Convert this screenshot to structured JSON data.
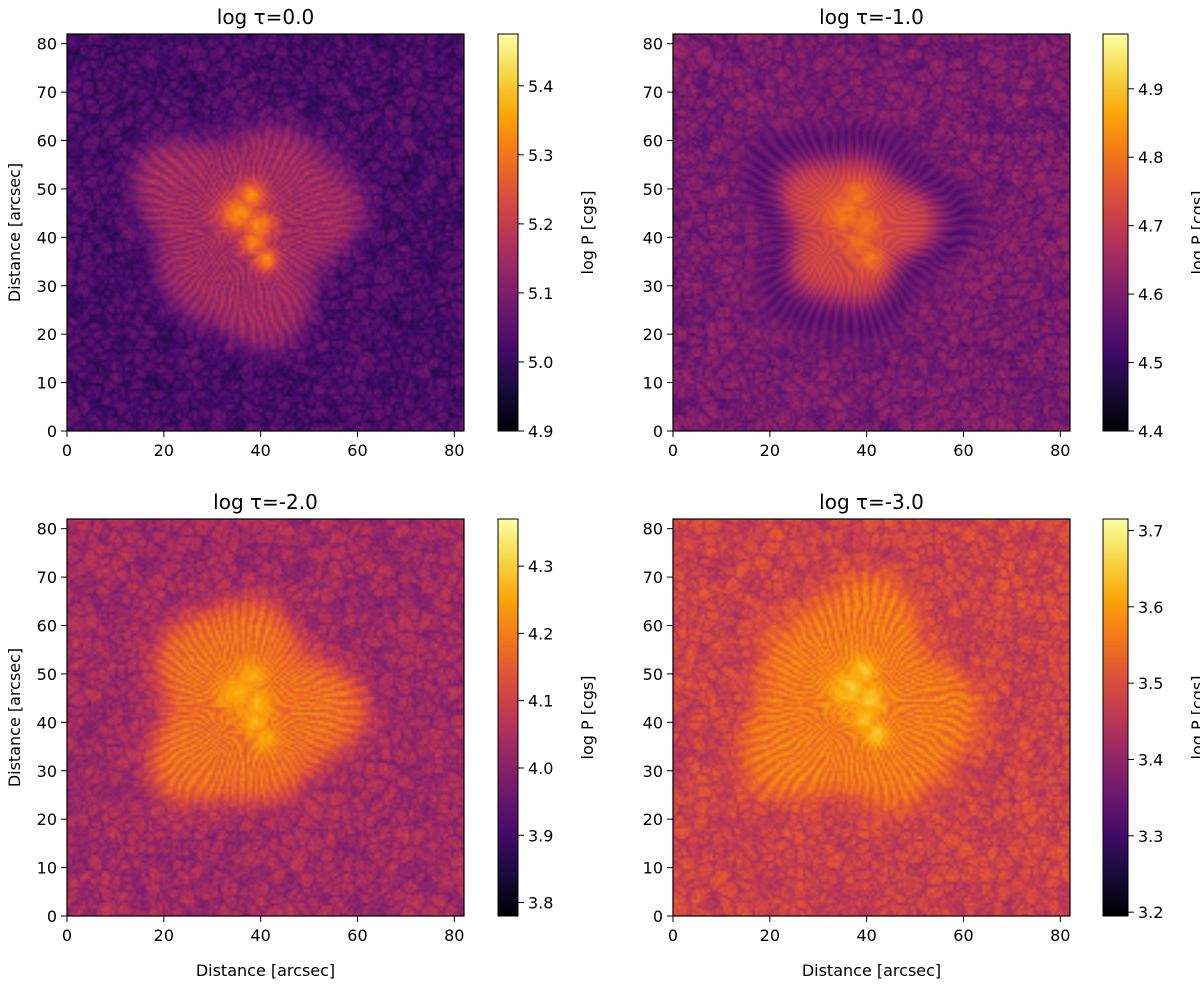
{
  "chart_data": [
    {
      "type": "heatmap",
      "title": "log τ=0.0",
      "xlabel": "",
      "ylabel": "Distance [arcsec]",
      "xlim": [
        0,
        82
      ],
      "ylim": [
        0,
        82
      ],
      "xticks": [
        "0",
        "20",
        "40",
        "60",
        "80"
      ],
      "yticks": [
        "0",
        "10",
        "20",
        "30",
        "40",
        "50",
        "60",
        "70",
        "80"
      ],
      "colorbar": {
        "label": "log P [cgs]",
        "range": [
          4.9,
          5.475
        ],
        "ticks": [
          "4.9",
          "5.0",
          "5.1",
          "5.2",
          "5.3",
          "5.4"
        ]
      },
      "features": {
        "umbra_center": [
          37,
          42
        ],
        "penumbra_radius_arcsec": 22,
        "background_level": 5.05,
        "penumbra_level": 5.15,
        "umbra_level": 5.32,
        "dark_penumbra": false
      }
    },
    {
      "type": "heatmap",
      "title": "log τ=-1.0",
      "xlabel": "",
      "ylabel": "",
      "xlim": [
        0,
        82
      ],
      "ylim": [
        0,
        82
      ],
      "xticks": [
        "0",
        "20",
        "40",
        "60",
        "80"
      ],
      "yticks": [
        "0",
        "10",
        "20",
        "30",
        "40",
        "50",
        "60",
        "70",
        "80"
      ],
      "colorbar": {
        "label": "log P [cgs]",
        "range": [
          4.4,
          4.98
        ],
        "ticks": [
          "4.4",
          "4.5",
          "4.6",
          "4.7",
          "4.8",
          "4.9"
        ]
      },
      "features": {
        "umbra_center": [
          37,
          42
        ],
        "penumbra_radius_arcsec": 23,
        "background_level": 4.62,
        "penumbra_level": 4.52,
        "umbra_level": 4.8,
        "dark_penumbra": true
      }
    },
    {
      "type": "heatmap",
      "title": "log τ=-2.0",
      "xlabel": "Distance [arcsec]",
      "ylabel": "Distance [arcsec]",
      "xlim": [
        0,
        82
      ],
      "ylim": [
        0,
        82
      ],
      "xticks": [
        "0",
        "20",
        "40",
        "60",
        "80"
      ],
      "yticks": [
        "0",
        "10",
        "20",
        "30",
        "40",
        "50",
        "60",
        "70",
        "80"
      ],
      "colorbar": {
        "label": "log P [cgs]",
        "range": [
          3.78,
          4.37
        ],
        "ticks": [
          "3.8",
          "3.9",
          "4.0",
          "4.1",
          "4.2",
          "4.3"
        ]
      },
      "features": {
        "umbra_center": [
          37,
          43
        ],
        "penumbra_radius_arcsec": 21,
        "background_level": 4.06,
        "penumbra_level": 4.18,
        "umbra_level": 4.26,
        "dark_penumbra": false
      }
    },
    {
      "type": "heatmap",
      "title": "log τ=-3.0",
      "xlabel": "Distance [arcsec]",
      "ylabel": "",
      "xlim": [
        0,
        82
      ],
      "ylim": [
        0,
        82
      ],
      "xticks": [
        "0",
        "20",
        "40",
        "60",
        "80"
      ],
      "yticks": [
        "0",
        "10",
        "20",
        "30",
        "40",
        "50",
        "60",
        "70",
        "80"
      ],
      "colorbar": {
        "label": "log P [cgs]",
        "range": [
          3.195,
          3.715
        ],
        "ticks": [
          "3.2",
          "3.3",
          "3.4",
          "3.5",
          "3.6",
          "3.7"
        ]
      },
      "features": {
        "umbra_center": [
          38,
          44
        ],
        "penumbra_radius_arcsec": 23,
        "background_level": 3.5,
        "penumbra_level": 3.56,
        "umbra_level": 3.64,
        "dark_penumbra": false
      }
    }
  ]
}
